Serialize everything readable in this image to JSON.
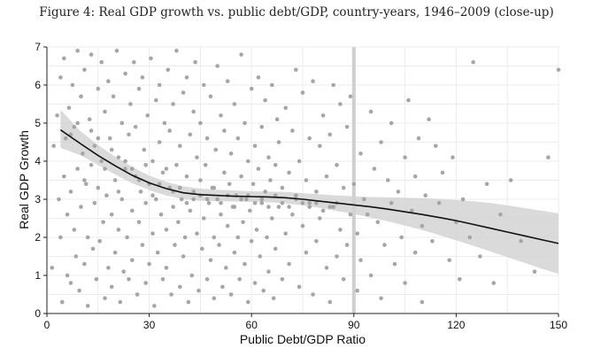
{
  "figure": {
    "title": "Figure 4: Real GDP growth vs. public debt/GDP, country-years, 1946–2009 (close-up)"
  },
  "chart_data": {
    "type": "scatter",
    "xlabel": "Public Debt/GDP Ratio",
    "ylabel": "Real GDP Growth",
    "xlim": [
      0,
      150
    ],
    "ylim": [
      0,
      7
    ],
    "xticks": [
      0,
      30,
      60,
      90,
      120,
      150
    ],
    "yticks": [
      0,
      1,
      2,
      3,
      4,
      5,
      6,
      7
    ],
    "grid": true,
    "reference_line_x": 90,
    "colors": {
      "points": "#a6a6a6",
      "band": "#d3d3d3",
      "line": "#111111",
      "grid": "#ececec",
      "reference": "#cfcfcf"
    },
    "fit_line": {
      "x": [
        4,
        10,
        15,
        20,
        25,
        30,
        35,
        40,
        45,
        50,
        55,
        60,
        65,
        70,
        75,
        80,
        85,
        90,
        95,
        100,
        105,
        110,
        115,
        120,
        125,
        130,
        135,
        140,
        145,
        150
      ],
      "y": [
        4.82,
        4.45,
        4.15,
        3.88,
        3.63,
        3.43,
        3.28,
        3.17,
        3.12,
        3.1,
        3.08,
        3.07,
        3.06,
        3.04,
        3.0,
        2.95,
        2.9,
        2.85,
        2.8,
        2.74,
        2.67,
        2.6,
        2.52,
        2.44,
        2.34,
        2.24,
        2.14,
        2.04,
        1.94,
        1.84
      ]
    },
    "confidence_band": {
      "x": [
        4,
        10,
        15,
        20,
        25,
        30,
        35,
        40,
        45,
        50,
        55,
        60,
        65,
        70,
        75,
        80,
        85,
        90,
        95,
        100,
        105,
        110,
        115,
        120,
        125,
        130,
        135,
        140,
        145,
        150
      ],
      "lower": [
        4.35,
        4.15,
        3.9,
        3.65,
        3.42,
        3.24,
        3.1,
        3.0,
        2.96,
        2.95,
        2.94,
        2.93,
        2.92,
        2.89,
        2.84,
        2.77,
        2.69,
        2.61,
        2.52,
        2.42,
        2.31,
        2.19,
        2.06,
        1.92,
        1.78,
        1.63,
        1.48,
        1.33,
        1.18,
        1.04
      ],
      "upper": [
        5.35,
        4.78,
        4.42,
        4.12,
        3.85,
        3.62,
        3.46,
        3.34,
        3.28,
        3.25,
        3.23,
        3.21,
        3.2,
        3.19,
        3.16,
        3.13,
        3.1,
        3.08,
        3.06,
        3.05,
        3.04,
        3.03,
        3.01,
        2.98,
        2.95,
        2.9,
        2.84,
        2.77,
        2.7,
        2.63
      ]
    },
    "points": [
      [
        1.5,
        1.2
      ],
      [
        2,
        4.4
      ],
      [
        3,
        5.2
      ],
      [
        3.5,
        3.0
      ],
      [
        4,
        6.2
      ],
      [
        4,
        2.0
      ],
      [
        4.5,
        0.3
      ],
      [
        5,
        3.6
      ],
      [
        5,
        6.7
      ],
      [
        5.5,
        4.6
      ],
      [
        6,
        1.0
      ],
      [
        6,
        2.6
      ],
      [
        6.5,
        5.4
      ],
      [
        7,
        0.8
      ],
      [
        7,
        3.2
      ],
      [
        7.5,
        6.0
      ],
      [
        8,
        2.2
      ],
      [
        8,
        4.9
      ],
      [
        8.5,
        1.5
      ],
      [
        9,
        6.9
      ],
      [
        9,
        3.8
      ],
      [
        9.5,
        0.6
      ],
      [
        10,
        2.8
      ],
      [
        10,
        5.7
      ],
      [
        10.5,
        4.2
      ],
      [
        11,
        1.3
      ],
      [
        11,
        6.4
      ],
      [
        11.5,
        3.4
      ],
      [
        12,
        0.2
      ],
      [
        12,
        2.0
      ],
      [
        12.5,
        5.1
      ],
      [
        13,
        3.9
      ],
      [
        13,
        6.8
      ],
      [
        13.5,
        1.7
      ],
      [
        14,
        4.4
      ],
      [
        14,
        2.9
      ],
      [
        14.5,
        0.9
      ],
      [
        15,
        5.9
      ],
      [
        15,
        3.3
      ],
      [
        15.5,
        1.9
      ],
      [
        16,
        6.6
      ],
      [
        16,
        4.0
      ],
      [
        16.5,
        2.4
      ],
      [
        17,
        0.4
      ],
      [
        17,
        5.3
      ],
      [
        17.5,
        3.1
      ],
      [
        18,
        1.2
      ],
      [
        18,
        6.1
      ],
      [
        18.5,
        4.6
      ],
      [
        19,
        2.6
      ],
      [
        19,
        0.7
      ],
      [
        19.5,
        5.7
      ],
      [
        20,
        3.5
      ],
      [
        20,
        1.6
      ],
      [
        20.5,
        6.9
      ],
      [
        21,
        4.1
      ],
      [
        21,
        2.2
      ],
      [
        21.5,
        0.3
      ],
      [
        22,
        5.0
      ],
      [
        22,
        3.0
      ],
      [
        22.5,
        1.1
      ],
      [
        23,
        6.3
      ],
      [
        23,
        3.8
      ],
      [
        23.5,
        2.0
      ],
      [
        24,
        4.7
      ],
      [
        24,
        0.9
      ],
      [
        24.5,
        5.5
      ],
      [
        25,
        2.7
      ],
      [
        25,
        1.4
      ],
      [
        25.5,
        6.6
      ],
      [
        26,
        3.6
      ],
      [
        26,
        4.9
      ],
      [
        26.5,
        0.5
      ],
      [
        27,
        2.4
      ],
      [
        27,
        5.9
      ],
      [
        27.5,
        3.2
      ],
      [
        28,
        1.8
      ],
      [
        28,
        6.2
      ],
      [
        28.5,
        4.3
      ],
      [
        29,
        2.9
      ],
      [
        29,
        0.8
      ],
      [
        29.5,
        5.2
      ],
      [
        30,
        3.4
      ],
      [
        30,
        1.3
      ],
      [
        30.5,
        6.7
      ],
      [
        31,
        4.0
      ],
      [
        31,
        2.1
      ],
      [
        31.5,
        0.2
      ],
      [
        32,
        5.6
      ],
      [
        32,
        3.0
      ],
      [
        32.5,
        1.6
      ],
      [
        33,
        4.5
      ],
      [
        33,
        6.0
      ],
      [
        33.5,
        2.6
      ],
      [
        34,
        0.9
      ],
      [
        34,
        3.7
      ],
      [
        34.5,
        5.0
      ],
      [
        35,
        2.2
      ],
      [
        35,
        1.2
      ],
      [
        35.5,
        6.4
      ],
      [
        36,
        3.3
      ],
      [
        36,
        4.8
      ],
      [
        36.5,
        0.5
      ],
      [
        37,
        2.8
      ],
      [
        37,
        5.5
      ],
      [
        37.5,
        1.8
      ],
      [
        38,
        3.9
      ],
      [
        38,
        6.9
      ],
      [
        38.5,
        2.4
      ],
      [
        39,
        0.7
      ],
      [
        39,
        4.4
      ],
      [
        39.5,
        3.0
      ],
      [
        40,
        5.8
      ],
      [
        40,
        1.5
      ],
      [
        40.5,
        2.0
      ],
      [
        41,
        6.2
      ],
      [
        41,
        3.6
      ],
      [
        41.5,
        0.3
      ],
      [
        42,
        4.7
      ],
      [
        42,
        2.7
      ],
      [
        42.5,
        1.0
      ],
      [
        43,
        5.3
      ],
      [
        43,
        3.2
      ],
      [
        43.5,
        6.6
      ],
      [
        44,
        2.1
      ],
      [
        44,
        4.1
      ],
      [
        44.5,
        0.6
      ],
      [
        45,
        3.5
      ],
      [
        45,
        5.0
      ],
      [
        45.5,
        1.7
      ],
      [
        46,
        2.5
      ],
      [
        46,
        6.0
      ],
      [
        46.5,
        3.9
      ],
      [
        47,
        0.9
      ],
      [
        47,
        4.6
      ],
      [
        47.5,
        2.9
      ],
      [
        48,
        1.4
      ],
      [
        48,
        5.7
      ],
      [
        48.5,
        3.3
      ],
      [
        49,
        2.0
      ],
      [
        49,
        0.4
      ],
      [
        49.5,
        4.3
      ],
      [
        50,
        3.0
      ],
      [
        50,
        6.5
      ],
      [
        50.5,
        1.8
      ],
      [
        51,
        2.6
      ],
      [
        51,
        5.2
      ],
      [
        51.5,
        0.7
      ],
      [
        52,
        3.7
      ],
      [
        52,
        4.8
      ],
      [
        52.5,
        1.2
      ],
      [
        53,
        2.3
      ],
      [
        53,
        6.1
      ],
      [
        53.5,
        3.4
      ],
      [
        54,
        0.5
      ],
      [
        54,
        4.2
      ],
      [
        54.5,
        2.8
      ],
      [
        55,
        1.6
      ],
      [
        55,
        5.5
      ],
      [
        55.5,
        3.1
      ],
      [
        56,
        2.0
      ],
      [
        56,
        4.6
      ],
      [
        56.5,
        0.9
      ],
      [
        57,
        3.6
      ],
      [
        57,
        6.8
      ],
      [
        57.5,
        2.4
      ],
      [
        58,
        1.3
      ],
      [
        58,
        5.0
      ],
      [
        58.5,
        3.0
      ],
      [
        59,
        4.0
      ],
      [
        59,
        0.3
      ],
      [
        59.5,
        2.7
      ],
      [
        60,
        1.9
      ],
      [
        60,
        5.9
      ],
      [
        60.5,
        3.4
      ],
      [
        61,
        4.4
      ],
      [
        61,
        0.8
      ],
      [
        61.5,
        2.2
      ],
      [
        62,
        3.8
      ],
      [
        62,
        6.2
      ],
      [
        62.5,
        1.5
      ],
      [
        63,
        2.9
      ],
      [
        63,
        4.9
      ],
      [
        63.5,
        0.6
      ],
      [
        64,
        3.2
      ],
      [
        64,
        5.6
      ],
      [
        64.5,
        2.0
      ],
      [
        65,
        1.1
      ],
      [
        65,
        4.1
      ],
      [
        65.5,
        3.5
      ],
      [
        66,
        2.5
      ],
      [
        66,
        6.0
      ],
      [
        66.5,
        0.4
      ],
      [
        67,
        3.9
      ],
      [
        67,
        1.7
      ],
      [
        67.5,
        5.1
      ],
      [
        68,
        2.8
      ],
      [
        68,
        4.5
      ],
      [
        69,
        3.3
      ],
      [
        69,
        0.9
      ],
      [
        70,
        2.1
      ],
      [
        70,
        5.4
      ],
      [
        71,
        3.7
      ],
      [
        71,
        1.3
      ],
      [
        72,
        4.8
      ],
      [
        72,
        2.6
      ],
      [
        73,
        6.4
      ],
      [
        73,
        3.1
      ],
      [
        74,
        0.7
      ],
      [
        74,
        4.0
      ],
      [
        75,
        2.3
      ],
      [
        75,
        5.8
      ],
      [
        76,
        3.5
      ],
      [
        76,
        1.6
      ],
      [
        77,
        4.6
      ],
      [
        77,
        2.9
      ],
      [
        78,
        6.1
      ],
      [
        78,
        0.5
      ],
      [
        79,
        3.2
      ],
      [
        79,
        1.9
      ],
      [
        80,
        4.4
      ],
      [
        80,
        2.5
      ],
      [
        81,
        5.2
      ],
      [
        82,
        3.6
      ],
      [
        82,
        1.2
      ],
      [
        83,
        0.3
      ],
      [
        83,
        4.7
      ],
      [
        84,
        2.8
      ],
      [
        84,
        6.0
      ],
      [
        85,
        1.5
      ],
      [
        85,
        3.9
      ],
      [
        86,
        5.5
      ],
      [
        86,
        2.2
      ],
      [
        87,
        0.9
      ],
      [
        87,
        3.3
      ],
      [
        88,
        4.9
      ],
      [
        88,
        1.8
      ],
      [
        89,
        2.6
      ],
      [
        89,
        5.7
      ],
      [
        90,
        3.4
      ],
      [
        91,
        0.6
      ],
      [
        91,
        2.1
      ],
      [
        92,
        4.2
      ],
      [
        92,
        1.4
      ],
      [
        93,
        3.0
      ],
      [
        94,
        2.6
      ],
      [
        95,
        5.3
      ],
      [
        95,
        1.0
      ],
      [
        96,
        3.8
      ],
      [
        97,
        2.4
      ],
      [
        98,
        4.5
      ],
      [
        98,
        0.4
      ],
      [
        99,
        1.8
      ],
      [
        100,
        3.5
      ],
      [
        101,
        2.9
      ],
      [
        101,
        5.0
      ],
      [
        102,
        1.3
      ],
      [
        103,
        3.2
      ],
      [
        104,
        2.0
      ],
      [
        105,
        4.1
      ],
      [
        105,
        0.8
      ],
      [
        106,
        5.6
      ],
      [
        107,
        2.7
      ],
      [
        108,
        3.6
      ],
      [
        108,
        1.6
      ],
      [
        109,
        4.6
      ],
      [
        110,
        2.3
      ],
      [
        110,
        0.3
      ],
      [
        111,
        3.1
      ],
      [
        112,
        5.1
      ],
      [
        113,
        1.9
      ],
      [
        114,
        4.4
      ],
      [
        115,
        2.9
      ],
      [
        116,
        3.7
      ],
      [
        118,
        1.4
      ],
      [
        119,
        4.1
      ],
      [
        120,
        2.4
      ],
      [
        121,
        0.9
      ],
      [
        122,
        3.0
      ],
      [
        124,
        2.0
      ],
      [
        125,
        6.6
      ],
      [
        127,
        1.5
      ],
      [
        129,
        3.4
      ],
      [
        131,
        0.8
      ],
      [
        133,
        2.6
      ],
      [
        136,
        3.5
      ],
      [
        139,
        1.9
      ],
      [
        143,
        1.1
      ],
      [
        147,
        4.1
      ],
      [
        150,
        6.4
      ],
      [
        7,
        4.7
      ],
      [
        9,
        5.0
      ],
      [
        11,
        3.5
      ],
      [
        13,
        4.8
      ],
      [
        15,
        4.6
      ],
      [
        17,
        3.8
      ],
      [
        19,
        4.3
      ],
      [
        21,
        3.2
      ],
      [
        23,
        4.0
      ],
      [
        25,
        3.8
      ],
      [
        27,
        3.5
      ],
      [
        29,
        3.9
      ],
      [
        31,
        3.1
      ],
      [
        33,
        3.4
      ],
      [
        35,
        3.8
      ],
      [
        37,
        3.2
      ],
      [
        39,
        3.3
      ],
      [
        41,
        2.9
      ],
      [
        43,
        3.0
      ],
      [
        45,
        3.1
      ],
      [
        47,
        3.0
      ],
      [
        49,
        3.3
      ],
      [
        51,
        2.9
      ],
      [
        53,
        3.1
      ],
      [
        55,
        2.8
      ],
      [
        57,
        3.0
      ],
      [
        59,
        3.1
      ],
      [
        61,
        2.9
      ],
      [
        63,
        3.0
      ],
      [
        65,
        2.8
      ],
      [
        67,
        3.1
      ],
      [
        69,
        2.9
      ],
      [
        71,
        2.8
      ],
      [
        73,
        3.0
      ],
      [
        75,
        2.9
      ],
      [
        77,
        2.8
      ],
      [
        79,
        2.9
      ],
      [
        81,
        2.7
      ],
      [
        83,
        2.8
      ],
      [
        85,
        2.9
      ]
    ]
  }
}
